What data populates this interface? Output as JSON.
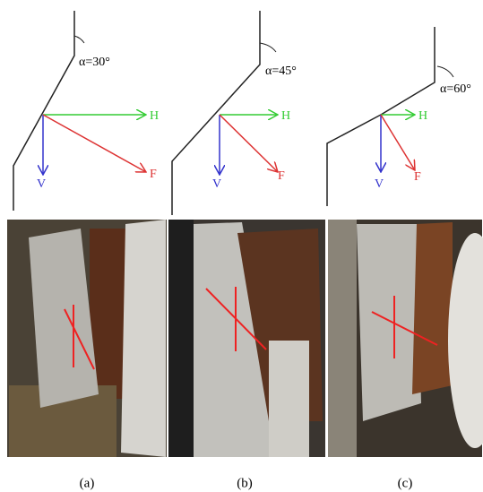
{
  "panels": [
    {
      "angle": "α=30°",
      "h": "H",
      "v": "V",
      "f": "F",
      "caption": "(a)"
    },
    {
      "angle": "α=45°",
      "h": "H",
      "v": "V",
      "f": "F",
      "caption": "(b)"
    },
    {
      "angle": "α=60°",
      "h": "H",
      "v": "V",
      "f": "F",
      "caption": "(c)"
    }
  ]
}
